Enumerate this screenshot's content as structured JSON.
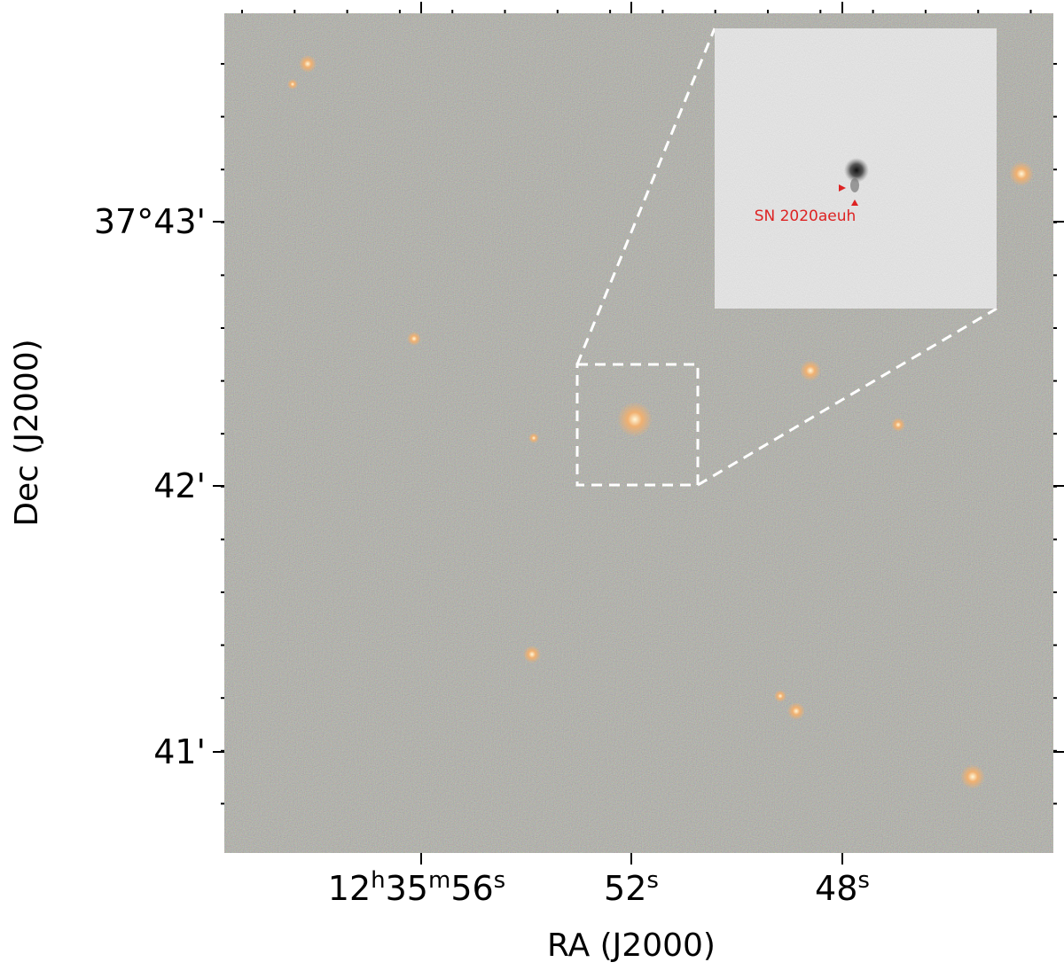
{
  "figure": {
    "x_axis": {
      "label": "RA (J2000)",
      "ticks": [
        [
          "12",
          "h",
          "35",
          "m",
          "56",
          "s"
        ],
        [
          "52",
          "s"
        ],
        [
          "48",
          "s"
        ]
      ]
    },
    "y_axis": {
      "label": "Dec (J2000)",
      "ticks": [
        "37°43'",
        "42'",
        "41'"
      ]
    },
    "inset": {
      "annotation": "SN 2020aeuh"
    }
  }
}
